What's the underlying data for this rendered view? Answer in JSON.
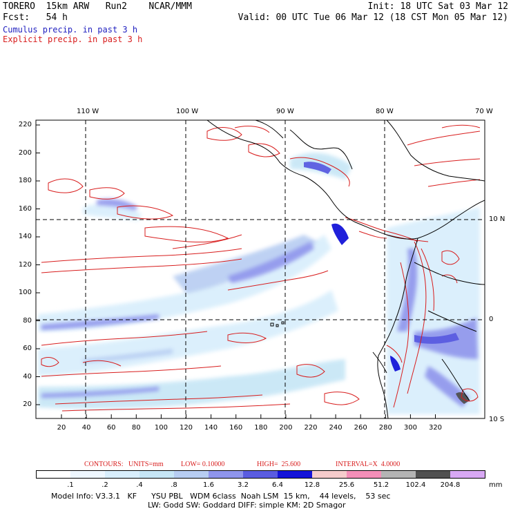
{
  "header": {
    "model": "TORERO  15km ARW   Run2    NCAR/MMM",
    "init": "Init: 18 UTC Sat 03 Mar 12",
    "fcst": "Fcst:   54 h",
    "valid": "Valid: 00 UTC Tue 06 Mar 12 (18 CST Mon 05 Mar 12)",
    "cumulus_label": "Cumulus precip. in past 3 h",
    "explicit_label": "Explicit precip. in past 3 h"
  },
  "colors": {
    "cumulus": "#1f1fbf",
    "explicit": "#d81c1c"
  },
  "axes": {
    "top_lon": [
      "110 W",
      "100 W",
      "90 W",
      "80 W",
      "70 W"
    ],
    "right_lat": [
      "10 N",
      "0",
      "10 S"
    ],
    "left_y": [
      "220",
      "200",
      "180",
      "160",
      "140",
      "120",
      "100",
      "80",
      "60",
      "40",
      "20"
    ],
    "bottom_x": [
      "20",
      "40",
      "60",
      "80",
      "100",
      "120",
      "140",
      "160",
      "180",
      "200",
      "220",
      "240",
      "260",
      "280",
      "300",
      "320"
    ]
  },
  "contours_info": {
    "contours": "CONTOURS:",
    "units": "UNITS=mm",
    "low": "LOW= 0.10000",
    "high": "HIGH=  25.600",
    "interval": "INTERVAL=X  4.0000"
  },
  "legend": {
    "labels": [
      ".1",
      ".2",
      ".4",
      ".8",
      "1.6",
      "3.2",
      "6.4",
      "12.8",
      "25.6",
      "51.2",
      "102.4",
      "204.8"
    ],
    "unit": "mm",
    "colors": [
      "#ffffff",
      "#eef7ff",
      "#d8eefc",
      "#c6e6f6",
      "#b7cdf2",
      "#8f95ec",
      "#5a5ce0",
      "#1414d8",
      "#f6cccc",
      "#f48fb8",
      "#b4b4b4",
      "#505050",
      "#d8a8f4"
    ]
  },
  "model_info": {
    "line1": "Model Info: V3.3.1   KF      YSU PBL   WDM 6class  Noah LSM  15 km,    44 levels,    53 sec",
    "line2": "LW: Godd SW: Goddard DIFF: simple KM: 2D Smagor"
  }
}
